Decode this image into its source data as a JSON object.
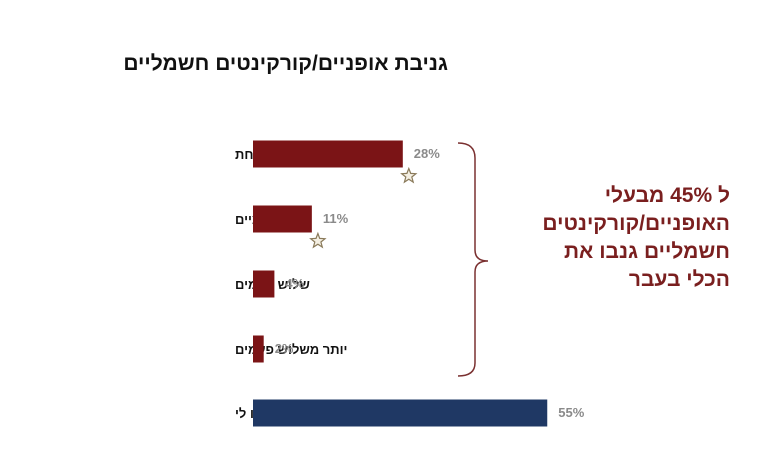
{
  "title": "גניבת אופניים/קורקינטים חשמליים",
  "callout_lines": [
    "ל 45% מבעלי",
    "האופניים/קורקינטים",
    "חשמליים גנבו את",
    "הכלי בעבר"
  ],
  "colors": {
    "theft_bar": "#7b1416",
    "never_bar": "#1f3864",
    "callout_text": "#7a1f1f",
    "brace": "#7a3030",
    "star_stroke": "#8a7a5a"
  },
  "chart_data": {
    "type": "bar",
    "orientation": "horizontal",
    "title": "גניבת אופניים/קורקינטים חשמליים",
    "categories": [
      "פעם אחת",
      "פעמיים",
      "שלוש פעמים",
      "יותר משלוש פעמים",
      "מעולם לא גנבו לי"
    ],
    "values": [
      28,
      11,
      4,
      2,
      55
    ],
    "value_labels": [
      "28%",
      "11%",
      "4%",
      "2%",
      "55%"
    ],
    "unit": "%",
    "xlim": [
      0,
      100
    ],
    "bar_colors": [
      "#7b1416",
      "#7b1416",
      "#7b1416",
      "#7b1416",
      "#1f3864"
    ],
    "starred": [
      true,
      true,
      false,
      false,
      false
    ],
    "brace_group": [
      0,
      1,
      2,
      3
    ],
    "grid": false,
    "legend": "none"
  }
}
